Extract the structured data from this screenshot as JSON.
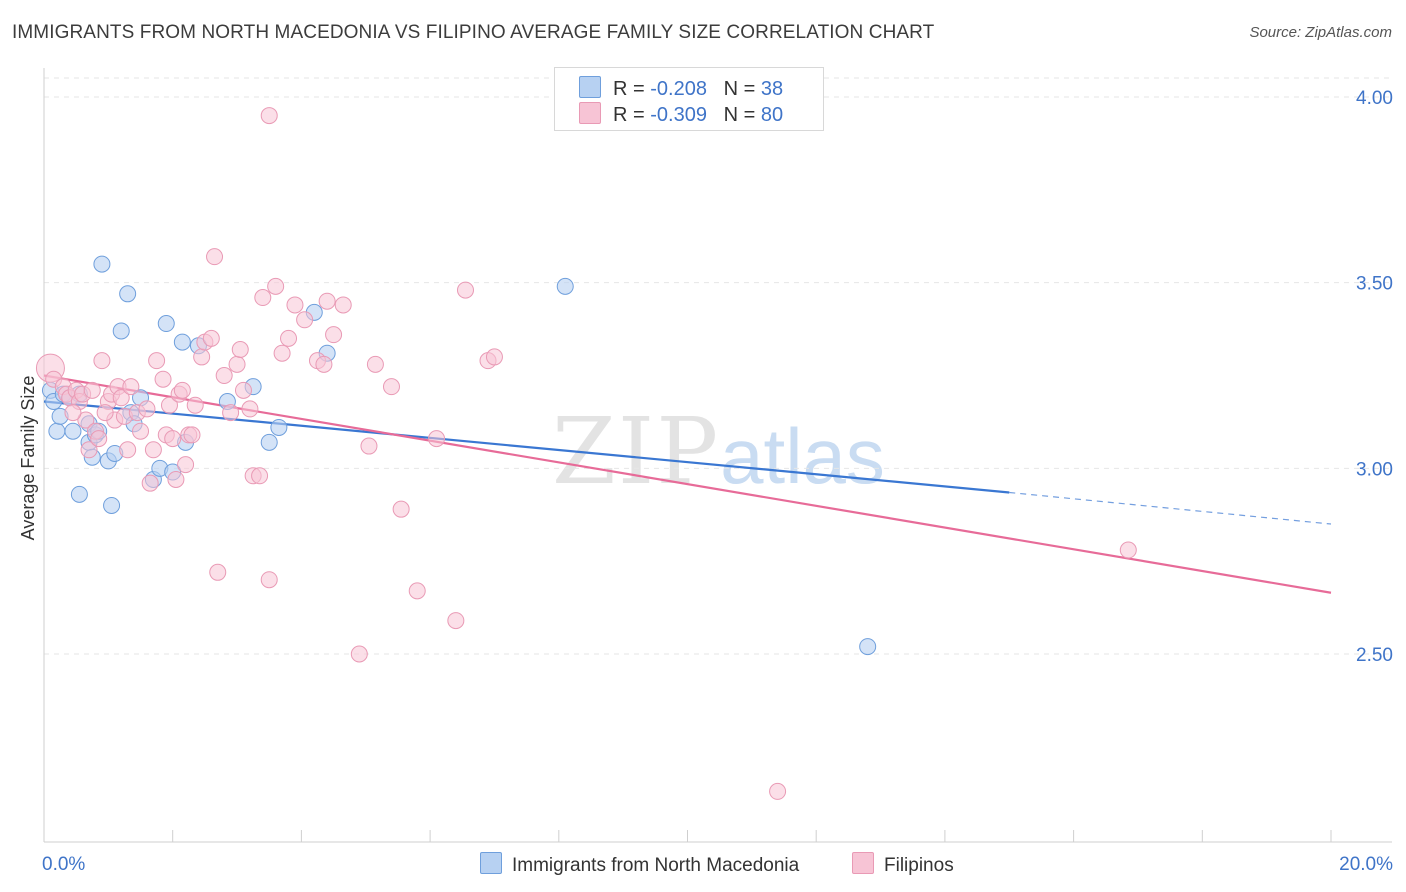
{
  "title": "IMMIGRANTS FROM NORTH MACEDONIA VS FILIPINO AVERAGE FAMILY SIZE CORRELATION CHART",
  "source": "Source: ZipAtlas.com",
  "watermark": {
    "zip": "ZIP",
    "atlas": "atlas"
  },
  "colors": {
    "blue_fill": "#b7d1f2",
    "blue_stroke": "#6f9fdc",
    "blue_line": "#3a77d2",
    "pink_fill": "#f7c4d5",
    "pink_stroke": "#e99ab5",
    "pink_line": "#e76b98",
    "tick_text": "#3f74c8",
    "grid": "#e6e6e6"
  },
  "legend": {
    "r_label": "R =",
    "n_label": "N =",
    "rows": [
      {
        "r": "-0.208",
        "n": "38",
        "color": "#b7d1f2",
        "border": "#6f9fdc"
      },
      {
        "r": "-0.309",
        "n": "80",
        "color": "#f7c4d5",
        "border": "#e99ab5"
      }
    ]
  },
  "chart_data": {
    "type": "scatter",
    "title": "IMMIGRANTS FROM NORTH MACEDONIA VS FILIPINO AVERAGE FAMILY SIZE CORRELATION CHART",
    "xlabel": "",
    "ylabel": "Average Family Size",
    "xlim": [
      0,
      20
    ],
    "ylim": [
      2.0,
      4.1
    ],
    "x_tick_labels": [
      "0.0%",
      "20.0%"
    ],
    "y_ticks": [
      2.5,
      3.0,
      3.5,
      4.0
    ],
    "y_tick_labels": [
      "2.50",
      "3.00",
      "3.50",
      "4.00"
    ],
    "grid": true,
    "legend_position": "top-center",
    "series": [
      {
        "name": "Immigrants from North Macedonia",
        "color": "#b7d1f2",
        "points": [
          [
            0.1,
            3.21
          ],
          [
            0.15,
            3.18
          ],
          [
            0.2,
            3.1
          ],
          [
            0.25,
            3.14
          ],
          [
            0.3,
            3.2
          ],
          [
            0.4,
            3.19
          ],
          [
            0.45,
            3.1
          ],
          [
            0.55,
            3.2
          ],
          [
            0.55,
            2.93
          ],
          [
            0.7,
            3.07
          ],
          [
            0.7,
            3.12
          ],
          [
            0.75,
            3.03
          ],
          [
            0.8,
            3.09
          ],
          [
            0.85,
            3.1
          ],
          [
            0.9,
            3.55
          ],
          [
            1.0,
            3.02
          ],
          [
            1.05,
            2.9
          ],
          [
            1.1,
            3.04
          ],
          [
            1.2,
            3.37
          ],
          [
            1.3,
            3.47
          ],
          [
            1.35,
            3.15
          ],
          [
            1.4,
            3.12
          ],
          [
            1.5,
            3.19
          ],
          [
            1.7,
            2.97
          ],
          [
            1.8,
            3.0
          ],
          [
            1.9,
            3.39
          ],
          [
            2.0,
            2.99
          ],
          [
            2.15,
            3.34
          ],
          [
            2.2,
            3.07
          ],
          [
            2.4,
            3.33
          ],
          [
            2.85,
            3.18
          ],
          [
            3.25,
            3.22
          ],
          [
            3.5,
            3.07
          ],
          [
            3.65,
            3.11
          ],
          [
            4.2,
            3.42
          ],
          [
            4.4,
            3.31
          ],
          [
            8.1,
            3.49
          ],
          [
            12.8,
            2.52
          ]
        ]
      },
      {
        "name": "Filipinos",
        "color": "#f7c4d5",
        "points": [
          [
            0.1,
            3.27
          ],
          [
            0.15,
            3.24
          ],
          [
            0.3,
            3.22
          ],
          [
            0.35,
            3.2
          ],
          [
            0.4,
            3.19
          ],
          [
            0.5,
            3.21
          ],
          [
            0.55,
            3.18
          ],
          [
            0.6,
            3.2
          ],
          [
            0.65,
            3.13
          ],
          [
            0.7,
            3.05
          ],
          [
            0.75,
            3.21
          ],
          [
            0.8,
            3.1
          ],
          [
            0.85,
            3.08
          ],
          [
            0.9,
            3.29
          ],
          [
            1.0,
            3.18
          ],
          [
            1.05,
            3.2
          ],
          [
            1.1,
            3.13
          ],
          [
            1.15,
            3.22
          ],
          [
            1.2,
            3.19
          ],
          [
            1.25,
            3.14
          ],
          [
            1.35,
            3.22
          ],
          [
            1.45,
            3.15
          ],
          [
            1.5,
            3.1
          ],
          [
            1.6,
            3.16
          ],
          [
            1.65,
            2.96
          ],
          [
            1.7,
            3.05
          ],
          [
            1.75,
            3.29
          ],
          [
            1.85,
            3.24
          ],
          [
            1.9,
            3.09
          ],
          [
            1.95,
            3.17
          ],
          [
            2.0,
            3.08
          ],
          [
            2.05,
            2.97
          ],
          [
            2.1,
            3.2
          ],
          [
            2.2,
            3.01
          ],
          [
            2.25,
            3.09
          ],
          [
            2.3,
            3.09
          ],
          [
            2.45,
            3.3
          ],
          [
            2.5,
            3.34
          ],
          [
            2.6,
            3.35
          ],
          [
            2.65,
            3.57
          ],
          [
            2.7,
            2.72
          ],
          [
            2.8,
            3.25
          ],
          [
            2.9,
            3.15
          ],
          [
            3.0,
            3.28
          ],
          [
            3.05,
            3.32
          ],
          [
            3.1,
            3.21
          ],
          [
            3.2,
            3.16
          ],
          [
            3.25,
            2.98
          ],
          [
            3.35,
            2.98
          ],
          [
            3.4,
            3.46
          ],
          [
            3.5,
            2.7
          ],
          [
            3.6,
            3.49
          ],
          [
            3.7,
            3.31
          ],
          [
            3.8,
            3.35
          ],
          [
            3.9,
            3.44
          ],
          [
            4.05,
            3.4
          ],
          [
            4.25,
            3.29
          ],
          [
            4.35,
            3.28
          ],
          [
            4.4,
            3.45
          ],
          [
            4.5,
            3.36
          ],
          [
            4.65,
            3.44
          ],
          [
            4.9,
            2.5
          ],
          [
            5.05,
            3.06
          ],
          [
            5.15,
            3.28
          ],
          [
            5.4,
            3.22
          ],
          [
            5.55,
            2.89
          ],
          [
            5.8,
            2.67
          ],
          [
            6.1,
            3.08
          ],
          [
            6.4,
            2.59
          ],
          [
            6.55,
            3.48
          ],
          [
            6.9,
            3.29
          ],
          [
            7.0,
            3.3
          ],
          [
            3.5,
            3.95
          ],
          [
            11.4,
            2.13
          ],
          [
            16.85,
            2.78
          ],
          [
            2.15,
            3.21
          ],
          [
            1.3,
            3.05
          ],
          [
            0.95,
            3.15
          ],
          [
            0.45,
            3.15
          ],
          [
            2.35,
            3.17
          ]
        ]
      }
    ],
    "trend_lines": [
      {
        "series": "Immigrants from North Macedonia",
        "x_solid": [
          0,
          15
        ],
        "y_solid": [
          3.18,
          2.935
        ],
        "x_dashed": [
          15,
          20
        ],
        "y_dashed": [
          2.935,
          2.85
        ]
      },
      {
        "series": "Filipinos",
        "x": [
          0,
          20
        ],
        "y": [
          3.25,
          2.665
        ]
      }
    ]
  }
}
